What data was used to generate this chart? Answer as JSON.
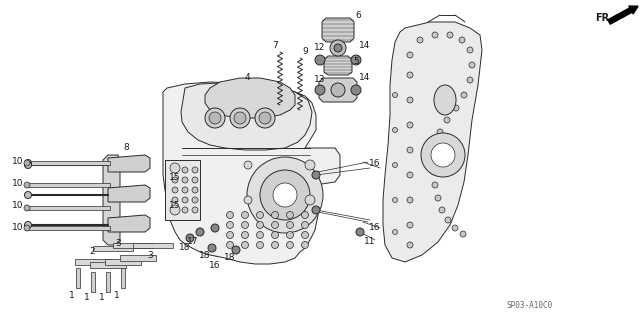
{
  "bg_color": "#ffffff",
  "line_color": "#2a2a2a",
  "label_color": "#1a1a1a",
  "watermark": "SP03-A10C0",
  "fr_label": "FR.",
  "fig_width": 6.4,
  "fig_height": 3.19,
  "dpi": 100
}
